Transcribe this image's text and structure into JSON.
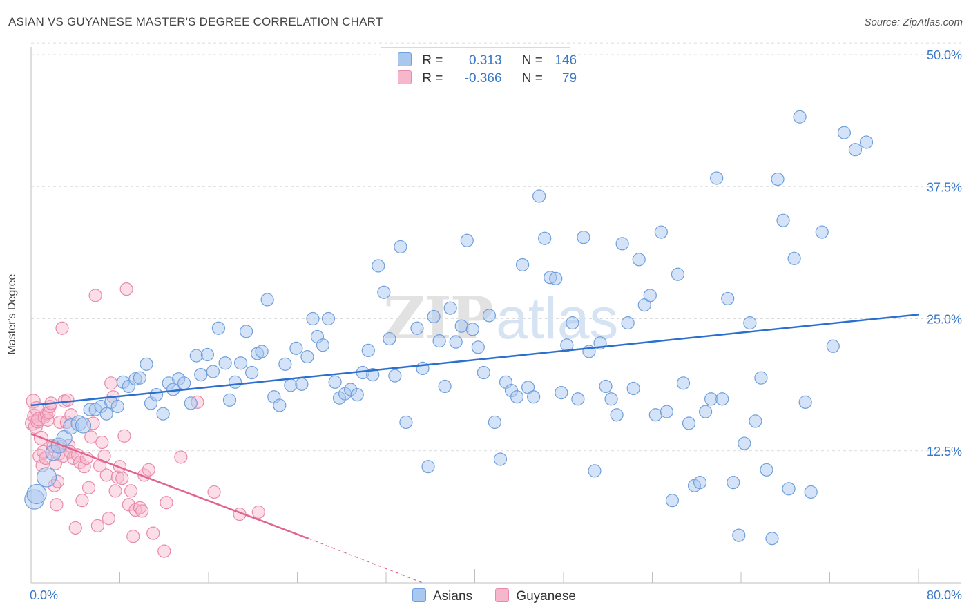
{
  "header": {
    "title": "ASIAN VS GUYANESE MASTER'S DEGREE CORRELATION CHART",
    "source": "Source: ZipAtlas.com"
  },
  "watermark": "ZIPatlas",
  "legend_top": {
    "rows": [
      {
        "r_label": "R =",
        "r_value": "0.313",
        "n_label": "N =",
        "n_value": "146"
      },
      {
        "r_label": "R =",
        "r_value": "-0.366",
        "n_label": "N =",
        "n_value": "79"
      }
    ]
  },
  "legend_bottom": {
    "items": [
      {
        "label": "Asians"
      },
      {
        "label": "Guyanese"
      }
    ]
  },
  "axes": {
    "y_label": "Master's Degree",
    "x_min_label": "0.0%",
    "x_max_label": "80.0%"
  },
  "colors": {
    "asian_fill": "#a9c8ef",
    "asian_stroke": "#6f9fdc",
    "asian_line": "#2b6fcf",
    "guyanese_fill": "#f6b6cb",
    "guyanese_stroke": "#e98aa8",
    "guyanese_line": "#e0648f",
    "tick_label": "#3a78c8",
    "grid": "#dcdcdc"
  },
  "chart_data": {
    "type": "scatter",
    "title": "ASIAN VS GUYANESE MASTER'S DEGREE CORRELATION CHART",
    "xlabel": "",
    "ylabel": "Master's Degree",
    "xlim": [
      0,
      80
    ],
    "ylim": [
      0,
      50
    ],
    "x_ticks": [
      "0.0%",
      "80.0%"
    ],
    "y_ticks": [
      "12.5%",
      "25.0%",
      "37.5%",
      "50.0%"
    ],
    "y_tick_values": [
      12.5,
      25,
      37.5,
      50
    ],
    "grid": true,
    "legend_position": "bottom",
    "series": [
      {
        "name": "Asians",
        "r": 0.313,
        "n": 146,
        "trend": {
          "x": [
            0,
            80
          ],
          "y": [
            16.8,
            25.4
          ]
        },
        "points": [
          [
            0.3,
            7.9
          ],
          [
            0.5,
            8.4
          ],
          [
            1.4,
            10.0
          ],
          [
            2.0,
            12.3
          ],
          [
            2.5,
            13.0
          ],
          [
            3.0,
            13.7
          ],
          [
            3.6,
            14.8
          ],
          [
            4.3,
            15.1
          ],
          [
            4.7,
            14.9
          ],
          [
            5.3,
            16.4
          ],
          [
            5.8,
            16.4
          ],
          [
            6.3,
            16.7
          ],
          [
            6.8,
            16.0
          ],
          [
            7.2,
            17.1
          ],
          [
            7.8,
            16.7
          ],
          [
            8.3,
            19.0
          ],
          [
            8.8,
            18.6
          ],
          [
            9.4,
            19.3
          ],
          [
            9.8,
            19.4
          ],
          [
            10.4,
            20.7
          ],
          [
            10.8,
            17.0
          ],
          [
            11.3,
            17.8
          ],
          [
            11.9,
            16.0
          ],
          [
            12.4,
            18.9
          ],
          [
            12.8,
            18.3
          ],
          [
            13.3,
            19.3
          ],
          [
            13.8,
            18.9
          ],
          [
            14.4,
            17.0
          ],
          [
            14.9,
            21.5
          ],
          [
            15.3,
            19.7
          ],
          [
            15.9,
            21.6
          ],
          [
            16.4,
            20.0
          ],
          [
            16.9,
            24.1
          ],
          [
            17.5,
            20.8
          ],
          [
            17.9,
            17.3
          ],
          [
            18.4,
            19.0
          ],
          [
            18.9,
            20.8
          ],
          [
            19.4,
            23.8
          ],
          [
            19.9,
            19.9
          ],
          [
            20.4,
            21.7
          ],
          [
            20.8,
            21.9
          ],
          [
            21.3,
            26.8
          ],
          [
            21.9,
            17.6
          ],
          [
            22.4,
            16.8
          ],
          [
            22.9,
            20.7
          ],
          [
            23.4,
            18.7
          ],
          [
            23.9,
            22.2
          ],
          [
            24.4,
            18.8
          ],
          [
            24.9,
            21.4
          ],
          [
            25.4,
            25.0
          ],
          [
            25.8,
            23.3
          ],
          [
            26.3,
            22.5
          ],
          [
            26.8,
            25.0
          ],
          [
            27.4,
            19.0
          ],
          [
            27.8,
            17.5
          ],
          [
            28.3,
            17.9
          ],
          [
            28.8,
            18.3
          ],
          [
            29.4,
            17.8
          ],
          [
            29.9,
            19.9
          ],
          [
            30.4,
            22.0
          ],
          [
            30.8,
            19.7
          ],
          [
            31.3,
            30.0
          ],
          [
            31.8,
            27.5
          ],
          [
            32.3,
            23.1
          ],
          [
            32.8,
            19.6
          ],
          [
            33.3,
            31.8
          ],
          [
            33.8,
            15.2
          ],
          [
            34.8,
            24.1
          ],
          [
            35.3,
            20.3
          ],
          [
            35.8,
            11.0
          ],
          [
            36.3,
            25.2
          ],
          [
            36.8,
            22.9
          ],
          [
            37.3,
            18.6
          ],
          [
            37.8,
            26.0
          ],
          [
            38.3,
            22.8
          ],
          [
            38.8,
            24.3
          ],
          [
            39.3,
            32.4
          ],
          [
            39.8,
            24.0
          ],
          [
            40.3,
            22.3
          ],
          [
            40.8,
            19.9
          ],
          [
            41.3,
            25.3
          ],
          [
            41.8,
            15.2
          ],
          [
            42.3,
            11.7
          ],
          [
            42.8,
            19.0
          ],
          [
            43.3,
            18.2
          ],
          [
            43.8,
            17.6
          ],
          [
            44.3,
            30.1
          ],
          [
            44.8,
            18.5
          ],
          [
            45.3,
            17.6
          ],
          [
            45.8,
            36.6
          ],
          [
            46.3,
            32.6
          ],
          [
            46.8,
            28.9
          ],
          [
            47.3,
            28.8
          ],
          [
            47.8,
            18.0
          ],
          [
            48.3,
            22.5
          ],
          [
            48.8,
            24.6
          ],
          [
            49.3,
            17.4
          ],
          [
            49.8,
            32.7
          ],
          [
            50.3,
            21.9
          ],
          [
            50.8,
            10.6
          ],
          [
            51.3,
            22.7
          ],
          [
            51.8,
            18.6
          ],
          [
            52.3,
            17.4
          ],
          [
            52.8,
            15.9
          ],
          [
            53.3,
            32.1
          ],
          [
            53.8,
            24.6
          ],
          [
            54.3,
            18.4
          ],
          [
            54.8,
            30.6
          ],
          [
            55.3,
            26.3
          ],
          [
            55.8,
            27.2
          ],
          [
            56.3,
            15.9
          ],
          [
            56.8,
            33.2
          ],
          [
            57.3,
            16.2
          ],
          [
            57.8,
            7.8
          ],
          [
            58.3,
            29.2
          ],
          [
            58.8,
            18.9
          ],
          [
            59.3,
            15.1
          ],
          [
            59.8,
            9.2
          ],
          [
            60.3,
            9.5
          ],
          [
            60.8,
            16.2
          ],
          [
            61.3,
            17.4
          ],
          [
            61.8,
            38.3
          ],
          [
            62.3,
            17.4
          ],
          [
            62.8,
            26.9
          ],
          [
            63.3,
            9.5
          ],
          [
            63.8,
            4.5
          ],
          [
            64.3,
            13.2
          ],
          [
            64.8,
            24.6
          ],
          [
            65.3,
            15.3
          ],
          [
            65.8,
            19.4
          ],
          [
            66.3,
            10.7
          ],
          [
            66.8,
            4.2
          ],
          [
            67.3,
            38.2
          ],
          [
            67.8,
            34.3
          ],
          [
            68.3,
            8.9
          ],
          [
            68.8,
            30.7
          ],
          [
            69.3,
            44.1
          ],
          [
            69.8,
            17.1
          ],
          [
            70.3,
            8.6
          ],
          [
            71.3,
            33.2
          ],
          [
            72.3,
            22.4
          ],
          [
            73.3,
            42.6
          ],
          [
            74.3,
            41.0
          ],
          [
            75.3,
            41.7
          ]
        ]
      },
      {
        "name": "Guyanese",
        "r": -0.366,
        "n": 79,
        "trend": {
          "x": [
            0,
            25
          ],
          "y": [
            14.1,
            4.2
          ],
          "dashed_to": {
            "x": 35.3,
            "y": 0
          }
        },
        "points": [
          [
            0.1,
            15.1
          ],
          [
            0.2,
            17.2
          ],
          [
            0.3,
            15.8
          ],
          [
            0.4,
            14.8
          ],
          [
            0.5,
            16.5
          ],
          [
            0.6,
            15.3
          ],
          [
            0.7,
            15.5
          ],
          [
            0.8,
            12.0
          ],
          [
            0.9,
            13.7
          ],
          [
            1.0,
            11.1
          ],
          [
            1.1,
            12.4
          ],
          [
            1.2,
            15.7
          ],
          [
            1.3,
            11.8
          ],
          [
            1.4,
            16.0
          ],
          [
            1.5,
            15.4
          ],
          [
            1.6,
            16.1
          ],
          [
            1.7,
            16.7
          ],
          [
            1.8,
            17.0
          ],
          [
            1.9,
            13.0
          ],
          [
            2.0,
            12.9
          ],
          [
            2.1,
            9.2
          ],
          [
            2.2,
            11.3
          ],
          [
            2.3,
            7.4
          ],
          [
            2.4,
            9.6
          ],
          [
            2.5,
            12.2
          ],
          [
            2.6,
            15.2
          ],
          [
            2.7,
            12.9
          ],
          [
            2.8,
            24.1
          ],
          [
            2.9,
            12.0
          ],
          [
            3.0,
            17.2
          ],
          [
            3.2,
            15.2
          ],
          [
            3.3,
            17.3
          ],
          [
            3.4,
            13.0
          ],
          [
            3.5,
            12.4
          ],
          [
            3.6,
            15.9
          ],
          [
            3.8,
            11.8
          ],
          [
            4.0,
            5.2
          ],
          [
            4.2,
            12.1
          ],
          [
            4.4,
            11.4
          ],
          [
            4.6,
            7.8
          ],
          [
            4.8,
            11.0
          ],
          [
            5.0,
            11.8
          ],
          [
            5.2,
            9.0
          ],
          [
            5.4,
            13.8
          ],
          [
            5.6,
            15.1
          ],
          [
            5.8,
            27.2
          ],
          [
            6.0,
            5.4
          ],
          [
            6.2,
            11.1
          ],
          [
            6.4,
            13.3
          ],
          [
            6.6,
            12.0
          ],
          [
            6.8,
            10.2
          ],
          [
            7.0,
            6.1
          ],
          [
            7.2,
            18.9
          ],
          [
            7.4,
            17.6
          ],
          [
            7.6,
            8.7
          ],
          [
            7.8,
            10.0
          ],
          [
            8.0,
            11.0
          ],
          [
            8.2,
            9.9
          ],
          [
            8.4,
            13.9
          ],
          [
            8.6,
            27.8
          ],
          [
            8.8,
            7.4
          ],
          [
            9.0,
            8.7
          ],
          [
            9.2,
            4.4
          ],
          [
            9.4,
            6.9
          ],
          [
            9.8,
            7.1
          ],
          [
            10.0,
            6.8
          ],
          [
            10.2,
            10.2
          ],
          [
            10.6,
            10.7
          ],
          [
            11.0,
            4.7
          ],
          [
            12.0,
            3.0
          ],
          [
            12.2,
            7.6
          ],
          [
            13.5,
            11.9
          ],
          [
            15.0,
            17.1
          ],
          [
            16.5,
            8.6
          ],
          [
            18.8,
            6.5
          ],
          [
            20.5,
            6.7
          ]
        ]
      }
    ]
  }
}
